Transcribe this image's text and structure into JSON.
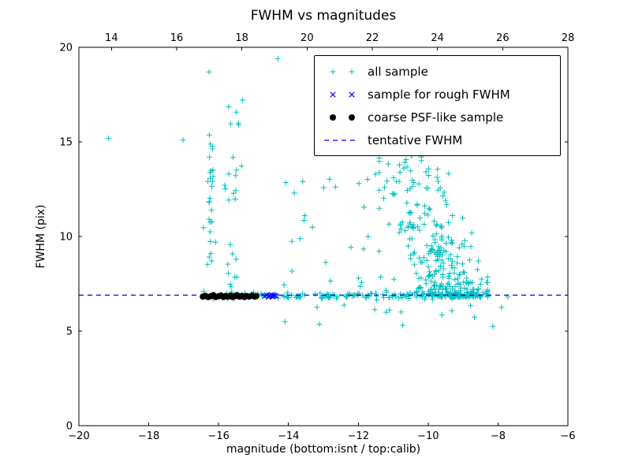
{
  "window": {
    "background": "#ffffff"
  },
  "chart_data": {
    "type": "scatter",
    "title": "FWHM vs magnitudes",
    "xlabel": "magnitude (bottom:isnt / top:calib)",
    "ylabel": "FWHM (pix)",
    "x_axis_bottom": {
      "range": [
        -20,
        -6
      ],
      "ticks": [
        -20,
        -18,
        -16,
        -14,
        -12,
        -10,
        -8,
        -6
      ],
      "tick_labels": [
        "−20",
        "−18",
        "−16",
        "−14",
        "−12",
        "−10",
        "−8",
        "−6"
      ]
    },
    "x_axis_top": {
      "range": [
        13,
        28
      ],
      "ticks": [
        14,
        16,
        18,
        20,
        22,
        24,
        26,
        28
      ],
      "tick_labels": [
        "14",
        "16",
        "18",
        "20",
        "22",
        "24",
        "26",
        "28"
      ]
    },
    "y_axis": {
      "range": [
        0,
        20
      ],
      "ticks": [
        0,
        5,
        10,
        15,
        20
      ],
      "tick_labels": [
        "0",
        "5",
        "10",
        "15",
        "20"
      ]
    },
    "tentative_fwhm": 6.9,
    "grid": false,
    "legend_position": "upper right",
    "seed": 7,
    "series": [
      {
        "name": "all sample",
        "marker": "plus",
        "color": "#00bfbf",
        "generated_clusters": [
          {
            "count": 25,
            "x": {
              "dist": "uniform",
              "a": -16.45,
              "b": -14.55
            },
            "y": {
              "dist": "normal",
              "mu": 6.86,
              "sd": 0.1
            }
          },
          {
            "count": 65,
            "x": {
              "dist": "uniform",
              "a": -14.55,
              "b": -11.5
            },
            "y": {
              "dist": "normal",
              "mu": 6.87,
              "sd": 0.07
            }
          },
          {
            "count": 70,
            "x": {
              "dist": "uniform",
              "a": -11.5,
              "b": -8.35
            },
            "y": {
              "dist": "normal",
              "mu": 6.9,
              "sd": 0.12
            }
          },
          {
            "count": 22,
            "x": {
              "dist": "normal",
              "mu": -16.25,
              "sd": 0.07
            },
            "y": {
              "dist": "uniform",
              "a": 5.8,
              "b": 15.5
            }
          },
          {
            "count": 6,
            "x": {
              "dist": "normal",
              "mu": -16.22,
              "sd": 0.05
            },
            "y": {
              "dist": "uniform",
              "a": 10.2,
              "b": 13.2
            }
          },
          {
            "count": 22,
            "x": {
              "dist": "normal",
              "mu": -15.55,
              "sd": 0.12
            },
            "y": {
              "dist": "uniform",
              "a": 6.6,
              "b": 15.2
            }
          },
          {
            "count": 6,
            "x": {
              "dist": "normal",
              "mu": -15.5,
              "sd": 0.15
            },
            "y": {
              "dist": "uniform",
              "a": 15.8,
              "b": 17.5
            }
          },
          {
            "count": 26,
            "x": {
              "dist": "uniform",
              "a": -14.3,
              "b": -11.35
            },
            "y": {
              "dist": "uniform",
              "a": 7.3,
              "b": 13.3
            }
          },
          {
            "type": "plume",
            "count": 330,
            "y_base": 6.8,
            "y_spread": 7.5,
            "exp": 2.2,
            "x_anchor": -9.15,
            "x_slope": -0.22,
            "x_sd": 0.55,
            "x_min": -11.4,
            "x_max": -8.3
          },
          {
            "count": 12,
            "x": {
              "dist": "uniform",
              "a": -13.2,
              "b": -8.6
            },
            "y": {
              "dist": "uniform",
              "a": 5.3,
              "b": 6.5
            }
          }
        ],
        "points": [
          [
            -19.15,
            15.2
          ],
          [
            -17.02,
            15.1
          ],
          [
            -16.27,
            18.7
          ],
          [
            -14.3,
            19.4
          ],
          [
            -14.1,
            5.5
          ],
          [
            -8.15,
            5.25
          ],
          [
            -7.9,
            6.25
          ],
          [
            -7.72,
            6.8
          ]
        ]
      },
      {
        "name": "sample for rough FWHM",
        "marker": "x",
        "color": "#0000ff",
        "points": [
          [
            -14.68,
            6.84
          ],
          [
            -14.62,
            6.9
          ],
          [
            -14.57,
            6.8
          ],
          [
            -14.52,
            6.87
          ],
          [
            -14.48,
            6.92
          ],
          [
            -14.44,
            6.82
          ],
          [
            -14.4,
            6.88
          ],
          [
            -14.36,
            6.85
          ],
          [
            -14.55,
            6.86
          ],
          [
            -14.45,
            6.86
          ]
        ]
      },
      {
        "name": "coarse PSF-like sample",
        "marker": "dot",
        "color": "#000000",
        "points": [
          [
            -16.45,
            6.82
          ],
          [
            -16.38,
            6.86
          ],
          [
            -16.3,
            6.8
          ],
          [
            -16.22,
            6.85
          ],
          [
            -16.15,
            6.9
          ],
          [
            -16.08,
            6.8
          ],
          [
            -16.0,
            6.84
          ],
          [
            -15.93,
            6.88
          ],
          [
            -15.86,
            6.8
          ],
          [
            -15.8,
            6.85
          ],
          [
            -15.73,
            6.82
          ],
          [
            -15.66,
            6.87
          ],
          [
            -15.6,
            6.8
          ],
          [
            -15.53,
            6.85
          ],
          [
            -15.47,
            6.9
          ],
          [
            -15.4,
            6.82
          ],
          [
            -15.33,
            6.86
          ],
          [
            -15.26,
            6.8
          ],
          [
            -15.2,
            6.85
          ],
          [
            -15.12,
            6.83
          ],
          [
            -15.04,
            6.87
          ],
          [
            -14.97,
            6.82
          ],
          [
            -14.92,
            6.85
          ]
        ]
      },
      {
        "name": "tentative FWHM",
        "marker": "dashed",
        "color": "#0000ff"
      }
    ]
  }
}
